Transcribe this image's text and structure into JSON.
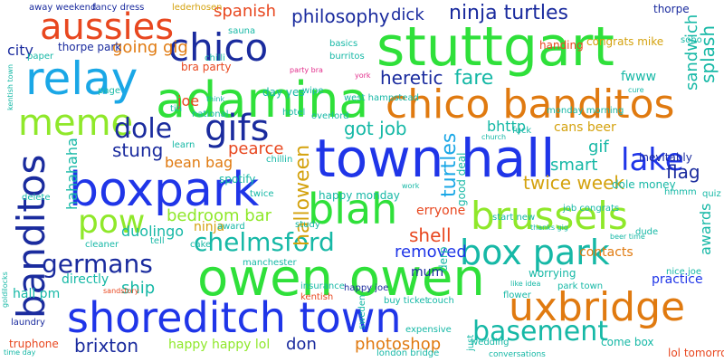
{
  "colors": {
    "blue": "#1f35e8",
    "green": "#2fe03a",
    "orange": "#e07a10",
    "red": "#e8471f",
    "lime": "#8fe82a",
    "cyan": "#1aa7e6",
    "navy": "#1a2b9e",
    "teal": "#16b8a6",
    "gold": "#d4a20e",
    "pink": "#e22f8c",
    "purple": "#7a2fe0"
  },
  "words": [
    {
      "text": "stuttgart",
      "color": "green"
    },
    {
      "text": "owen owen",
      "color": "green"
    },
    {
      "text": "town hall",
      "color": "blue"
    },
    {
      "text": "boxpark",
      "color": "blue"
    },
    {
      "text": "shoreditch town",
      "color": "blue"
    },
    {
      "text": "adamina",
      "color": "green"
    },
    {
      "text": "relay",
      "color": "cyan"
    },
    {
      "text": "chico banditos",
      "color": "orange"
    },
    {
      "text": "blah",
      "color": "green"
    },
    {
      "text": "brussels",
      "color": "lime"
    },
    {
      "text": "uxbridge",
      "color": "orange"
    },
    {
      "text": "box park",
      "color": "teal"
    },
    {
      "text": "basement",
      "color": "teal"
    },
    {
      "text": "banditos",
      "color": "navy"
    },
    {
      "text": "chico",
      "color": "navy"
    },
    {
      "text": "aussies",
      "color": "red"
    },
    {
      "text": "meme",
      "color": "lime"
    },
    {
      "text": "gifs",
      "color": "navy"
    },
    {
      "text": "pow",
      "color": "lime"
    },
    {
      "text": "chelmsford",
      "color": "teal"
    },
    {
      "text": "germans",
      "color": "navy"
    },
    {
      "text": "lake",
      "color": "blue"
    },
    {
      "text": "dole",
      "color": "navy"
    },
    {
      "text": "brixton",
      "color": "navy"
    },
    {
      "text": "halloween",
      "color": "gold"
    },
    {
      "text": "turtles",
      "color": "cyan"
    },
    {
      "text": "philosophy",
      "color": "navy"
    },
    {
      "text": "ninja turtles",
      "color": "navy"
    },
    {
      "text": "spanish",
      "color": "red"
    },
    {
      "text": "going gig",
      "color": "orange"
    },
    {
      "text": "heretic",
      "color": "navy"
    },
    {
      "text": "fare",
      "color": "teal"
    },
    {
      "text": "got job",
      "color": "teal"
    },
    {
      "text": "stung",
      "color": "navy"
    },
    {
      "text": "pearce",
      "color": "red"
    },
    {
      "text": "bean bag",
      "color": "orange"
    },
    {
      "text": "bedroom bar",
      "color": "lime"
    },
    {
      "text": "twice week",
      "color": "gold"
    },
    {
      "text": "smart",
      "color": "teal"
    },
    {
      "text": "flag",
      "color": "navy"
    },
    {
      "text": "shell",
      "color": "red"
    },
    {
      "text": "removed",
      "color": "blue"
    },
    {
      "text": "photoshop",
      "color": "orange"
    },
    {
      "text": "happy happy lol",
      "color": "lime"
    },
    {
      "text": "don",
      "color": "navy"
    },
    {
      "text": "ship",
      "color": "teal"
    },
    {
      "text": "mum",
      "color": "navy"
    },
    {
      "text": "contacts",
      "color": "orange"
    },
    {
      "text": "splash",
      "color": "teal"
    },
    {
      "text": "sandwich",
      "color": "teal"
    },
    {
      "text": "awards",
      "color": "teal"
    },
    {
      "text": "gif",
      "color": "teal"
    },
    {
      "text": "bhttp",
      "color": "teal"
    },
    {
      "text": "fwww",
      "color": "teal"
    },
    {
      "text": "dick",
      "color": "navy"
    },
    {
      "text": "hahahaha",
      "color": "teal"
    },
    {
      "text": "duolingo",
      "color": "teal"
    },
    {
      "text": "ninja",
      "color": "gold"
    },
    {
      "text": "directly",
      "color": "teal"
    },
    {
      "text": "hall pm",
      "color": "teal"
    },
    {
      "text": "city",
      "color": "navy"
    },
    {
      "text": "joe",
      "color": "red"
    },
    {
      "text": "bra party",
      "color": "red"
    },
    {
      "text": "cans beer",
      "color": "gold"
    },
    {
      "text": "happy monday",
      "color": "teal"
    },
    {
      "text": "dole money",
      "color": "teal"
    },
    {
      "text": "erryone",
      "color": "red"
    },
    {
      "text": "thorpe park",
      "color": "navy"
    },
    {
      "text": "lederhosen",
      "color": "gold"
    },
    {
      "text": "congrats mike",
      "color": "gold"
    },
    {
      "text": "thorpe",
      "color": "navy"
    },
    {
      "text": "spotify",
      "color": "teal"
    },
    {
      "text": "manchester",
      "color": "teal"
    },
    {
      "text": "london bridge",
      "color": "teal"
    },
    {
      "text": "come box",
      "color": "teal"
    },
    {
      "text": "lol tomorrow",
      "color": "red"
    },
    {
      "text": "practice",
      "color": "blue"
    },
    {
      "text": "worrying",
      "color": "teal"
    },
    {
      "text": "nice joe",
      "color": "teal"
    },
    {
      "text": "buy ticket",
      "color": "teal"
    },
    {
      "text": "truphone",
      "color": "red"
    },
    {
      "text": "laundry",
      "color": "navy"
    },
    {
      "text": "fancy dress",
      "color": "navy"
    },
    {
      "text": "away weekend",
      "color": "navy"
    },
    {
      "text": "burritos",
      "color": "teal"
    },
    {
      "text": "handing",
      "color": "red"
    },
    {
      "text": "day yes",
      "color": "teal"
    },
    {
      "text": "overlord",
      "color": "teal"
    },
    {
      "text": "west hampstead",
      "color": "teal"
    },
    {
      "text": "monday morning",
      "color": "teal"
    },
    {
      "text": "sauna",
      "color": "teal"
    },
    {
      "text": "inevitably",
      "color": "navy"
    },
    {
      "text": "good deal",
      "color": "teal"
    },
    {
      "text": "start new",
      "color": "teal"
    },
    {
      "text": "quiz",
      "color": "teal"
    },
    {
      "text": "hmmm",
      "color": "teal"
    },
    {
      "text": "study",
      "color": "teal"
    },
    {
      "text": "award",
      "color": "teal"
    },
    {
      "text": "insurance",
      "color": "teal"
    },
    {
      "text": "kentish",
      "color": "red"
    },
    {
      "text": "happy joe",
      "color": "navy"
    },
    {
      "text": "derp",
      "color": "teal"
    },
    {
      "text": "soho",
      "color": "teal"
    },
    {
      "text": "fuck",
      "color": "teal"
    },
    {
      "text": "sandstory",
      "color": "red"
    },
    {
      "text": "flower",
      "color": "teal"
    },
    {
      "text": "sweden",
      "color": "teal"
    },
    {
      "text": "couch",
      "color": "teal"
    },
    {
      "text": "just",
      "color": "teal"
    },
    {
      "text": "tell",
      "color": "teal"
    },
    {
      "text": "national",
      "color": "teal"
    },
    {
      "text": "party bra",
      "color": "pink"
    },
    {
      "text": "york",
      "color": "pink"
    },
    {
      "text": "chillin",
      "color": "teal"
    },
    {
      "text": "paper",
      "color": "teal"
    },
    {
      "text": "wipe",
      "color": "teal"
    },
    {
      "text": "chilli",
      "color": "teal"
    },
    {
      "text": "job congrats",
      "color": "teal"
    },
    {
      "text": "cure",
      "color": "teal"
    },
    {
      "text": "park town",
      "color": "teal"
    },
    {
      "text": "hotel",
      "color": "teal"
    },
    {
      "text": "page",
      "color": "teal"
    },
    {
      "text": "tin",
      "color": "teal"
    },
    {
      "text": "goldilocks",
      "color": "teal"
    },
    {
      "text": "thanks gig",
      "color": "teal"
    },
    {
      "text": "kentish town",
      "color": "teal"
    },
    {
      "text": "expensive",
      "color": "teal"
    },
    {
      "text": "church",
      "color": "teal"
    },
    {
      "text": "conversations",
      "color": "teal"
    },
    {
      "text": "cleaner",
      "color": "teal"
    },
    {
      "text": "cake",
      "color": "teal"
    },
    {
      "text": "delete",
      "color": "teal"
    },
    {
      "text": "learn",
      "color": "teal"
    },
    {
      "text": "basics",
      "color": "teal"
    },
    {
      "text": "twice",
      "color": "teal"
    },
    {
      "text": "work",
      "color": "teal"
    },
    {
      "text": "think",
      "color": "teal"
    },
    {
      "text": "wedding",
      "color": "teal"
    },
    {
      "text": "dude",
      "color": "teal"
    },
    {
      "text": "time day",
      "color": "teal"
    },
    {
      "text": "like idea",
      "color": "teal"
    },
    {
      "text": "beer time",
      "color": "teal"
    }
  ]
}
